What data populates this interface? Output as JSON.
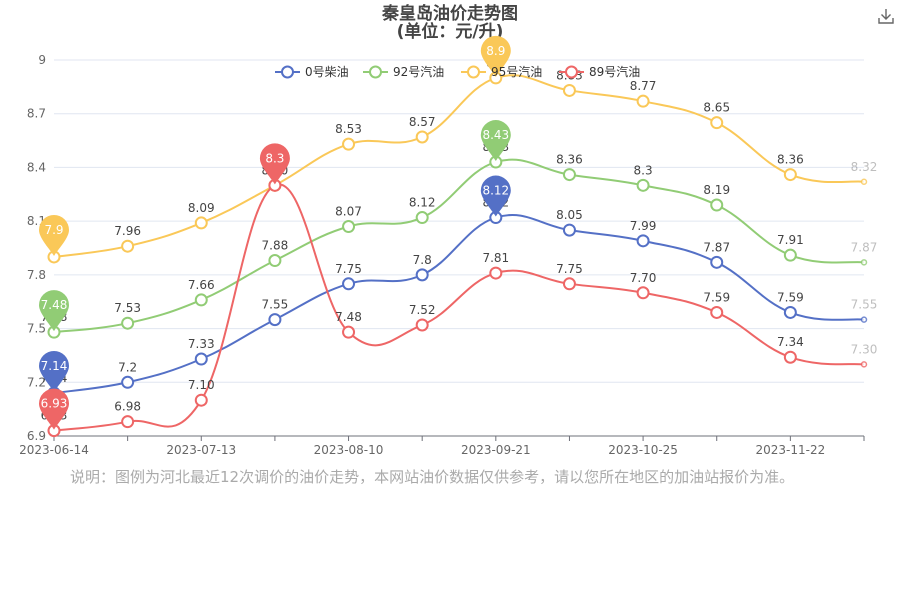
{
  "page": {
    "title": "秦皇岛油价走势图",
    "subtitle": "(单位：元/升)",
    "footnote": "说明：图例为河北最近12次调价的油价走势，本网站油价数据仅供参考，请以您所在地区的加油站报价为准。",
    "download_icon": "download-icon"
  },
  "chart_data": {
    "type": "line",
    "title": "秦皇岛油价走势图",
    "subtitle": "(单位：元/升)",
    "x_tick_labels": [
      "2023-06-14",
      "2023-07-13",
      "2023-08-10",
      "2023-09-21",
      "2023-10-25",
      "2023-11-22"
    ],
    "x_tick_index": [
      0,
      2,
      4,
      6,
      8,
      10
    ],
    "y_ticks": [
      6.9,
      7.2,
      7.5,
      7.8,
      8.1,
      8.4,
      8.7,
      9
    ],
    "ylim": [
      6.9,
      9
    ],
    "grid": true,
    "legend_position": "top",
    "series": [
      {
        "name": "0号柴油",
        "color": "#5470c6",
        "values": [
          7.14,
          7.2,
          7.33,
          7.55,
          7.75,
          7.8,
          8.12,
          8.05,
          7.99,
          7.87,
          7.59,
          7.55
        ],
        "labels": [
          "7.14",
          "7.2",
          "7.33",
          "7.55",
          "7.75",
          "7.8",
          "8.12",
          "8.05",
          "7.99",
          "7.87",
          "7.59",
          "7.55"
        ],
        "pins": [
          {
            "index": 0,
            "label": "7.14"
          },
          {
            "index": 6,
            "label": "8.12"
          }
        ]
      },
      {
        "name": "92号汽油",
        "color": "#91cc75",
        "values": [
          7.48,
          7.53,
          7.66,
          7.88,
          8.07,
          8.12,
          8.43,
          8.36,
          8.3,
          8.19,
          7.91,
          7.87
        ],
        "labels": [
          "7.48",
          "7.53",
          "7.66",
          "7.88",
          "8.07",
          "8.12",
          "8.43",
          "8.36",
          "8.3",
          "8.19",
          "7.91",
          "7.87"
        ],
        "pins": [
          {
            "index": 0,
            "label": "7.48"
          },
          {
            "index": 6,
            "label": "8.43"
          }
        ]
      },
      {
        "name": "95号汽油",
        "color": "#fac858",
        "values": [
          7.9,
          7.96,
          8.09,
          8.3,
          8.53,
          8.57,
          8.9,
          8.83,
          8.77,
          8.65,
          8.36,
          8.32
        ],
        "labels": [
          "7.9",
          "7.96",
          "8.09",
          "8.3",
          "8.53",
          "8.57",
          "8.9",
          "8.83",
          "8.77",
          "8.65",
          "8.36",
          "8.32"
        ],
        "pins": [
          {
            "index": 0,
            "label": "7.9"
          },
          {
            "index": 6,
            "label": "8.9"
          }
        ]
      },
      {
        "name": "89号汽油",
        "color": "#ee6666",
        "values": [
          6.93,
          6.98,
          7.1,
          8.3,
          7.48,
          7.52,
          7.81,
          7.75,
          7.7,
          7.59,
          7.34,
          7.3
        ],
        "labels": [
          "6.93",
          "6.98",
          "7.10",
          "8.30",
          "7.48",
          "7.52",
          "7.81",
          "7.75",
          "7.70",
          "7.59",
          "7.34",
          "7.30"
        ],
        "pins": [
          {
            "index": 0,
            "label": "6.93"
          },
          {
            "index": 3,
            "label": "8.3"
          }
        ]
      }
    ],
    "faded_last_point": true
  }
}
